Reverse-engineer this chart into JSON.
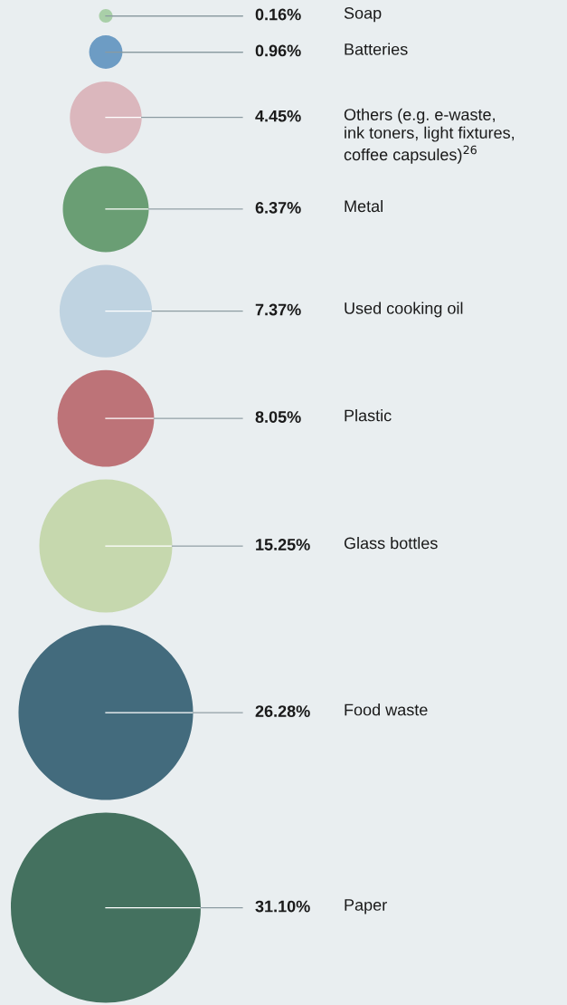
{
  "chart_data": {
    "type": "other",
    "categories": [
      "Soap",
      "Batteries",
      "Others (e.g. e-waste,\nink toners, light fixtures,\ncoffee capsules)$^{26}$",
      "Metal",
      "Used cooking oil",
      "Plastic",
      "Glass bottles",
      "Food waste",
      "Paper"
    ],
    "values": [
      0.16,
      0.96,
      4.45,
      6.37,
      7.37,
      8.05,
      15.25,
      26.28,
      31.1
    ],
    "value_labels": [
      "0.16%",
      "0.96%",
      "4.45%",
      "6.37%",
      "7.37%",
      "8.05%",
      "15.25%",
      "26.28%",
      "31.10%"
    ],
    "colors": [
      "#a9cfa8",
      "#6d9cc4",
      "#dbb7bd",
      "#6a9e74",
      "#bfd3e1",
      "#bd7378",
      "#c6d8ae",
      "#436b7d",
      "#44715f"
    ]
  }
}
